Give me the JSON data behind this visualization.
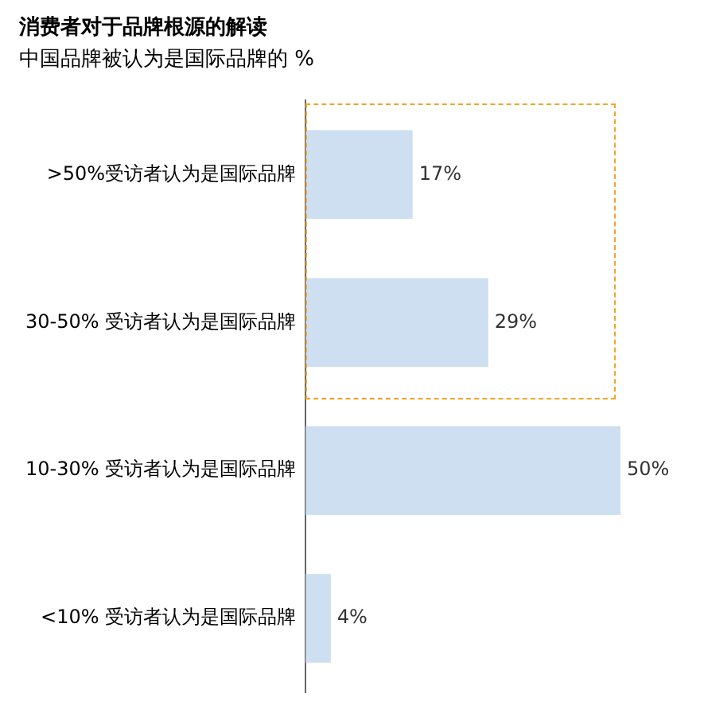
{
  "chart_data": {
    "type": "bar",
    "orientation": "horizontal",
    "title": "消费者对于品牌根源的解读",
    "subtitle": "中国品牌被认为是国际品牌的 %",
    "categories": [
      ">50%受访者认为是国际品牌",
      "30-50% 受访者认为是国际品牌",
      "10-30% 受访者认为是国际品牌",
      "<10% 受访者认为是国际品牌"
    ],
    "values": [
      17,
      29,
      50,
      4
    ],
    "value_labels": [
      "17%",
      "29%",
      "50%",
      "4%"
    ],
    "color": "#cddff0",
    "xlim": [
      0,
      50
    ],
    "tick_labels": "y",
    "grid": false,
    "legend": false
  }
}
